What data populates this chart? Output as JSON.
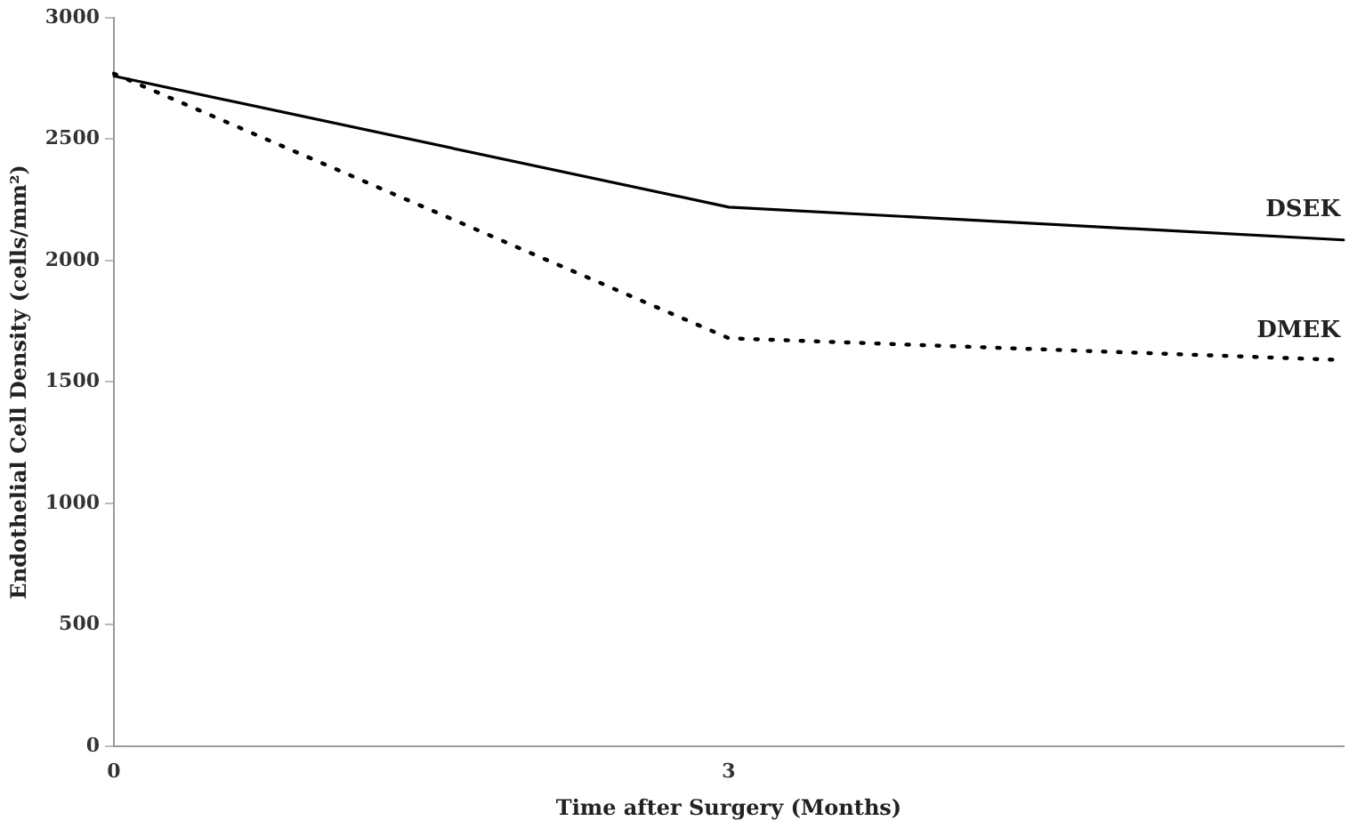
{
  "chart_data": {
    "type": "line",
    "xlabel": "Time after Surgery (Months)",
    "ylabel": "Endothelial Cell Density (cells/mm²)",
    "categories": [
      "0",
      "3",
      null
    ],
    "series": [
      {
        "name": "DSEK",
        "color": "#000000",
        "line_style": "solid",
        "values": [
          2760,
          2220,
          2085
        ]
      },
      {
        "name": "DMEK",
        "color": "#000000",
        "line_style": "dotted",
        "values": [
          2770,
          1680,
          1590
        ]
      }
    ],
    "ylim": [
      0,
      3000
    ],
    "yticks": [
      0,
      500,
      1000,
      1500,
      2000,
      2500,
      3000
    ],
    "grid": false,
    "legend": false,
    "marker": "none"
  }
}
